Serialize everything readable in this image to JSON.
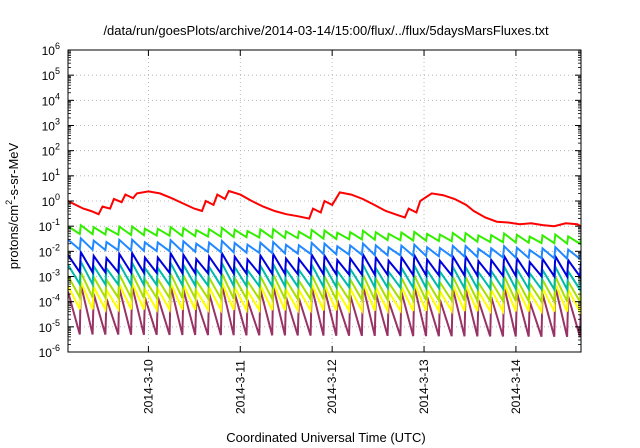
{
  "chart_data": {
    "type": "line",
    "title": "/data/run/goesPlots/archive/2014-03-14/15:00/flux/../flux/5daysMarsFluxes.txt",
    "xlabel": "Coordinated Universal Time (UTC)",
    "ylabel": "protons/cm2-s-sr-MeV",
    "yscale": "log",
    "ylim": [
      1e-06,
      1000000.0
    ],
    "xlim": [
      "2014-03-09 03:00",
      "2014-03-14 17:00"
    ],
    "grid": true,
    "x_ticks": [
      "2014-3-10",
      "2014-3-11",
      "2014-3-12",
      "2014-3-13",
      "2014-3-14"
    ],
    "y_ticks": [
      {
        "base": "10",
        "exp": "-6"
      },
      {
        "base": "10",
        "exp": "-5"
      },
      {
        "base": "10",
        "exp": "-4"
      },
      {
        "base": "10",
        "exp": "-3"
      },
      {
        "base": "10",
        "exp": "-2"
      },
      {
        "base": "10",
        "exp": "-1"
      },
      {
        "base": "10",
        "exp": "0"
      },
      {
        "base": "10",
        "exp": "1"
      },
      {
        "base": "10",
        "exp": "2"
      },
      {
        "base": "10",
        "exp": "3"
      },
      {
        "base": "10",
        "exp": "4"
      },
      {
        "base": "10",
        "exp": "5"
      },
      {
        "base": "10",
        "exp": "6"
      }
    ],
    "series": [
      {
        "color": "#ff0000",
        "x": [
          "2014-03-09 03:00",
          "2014-03-09 05:00",
          "2014-03-09 07:00",
          "2014-03-09 09:00",
          "2014-03-09 11:00",
          "2014-03-09 12:00",
          "2014-03-09 14:00",
          "2014-03-09 15:00",
          "2014-03-09 17:00",
          "2014-03-09 18:00",
          "2014-03-09 20:00",
          "2014-03-09 21:00",
          "2014-03-10 00:00",
          "2014-03-10 03:00",
          "2014-03-10 06:00",
          "2014-03-10 09:00",
          "2014-03-10 12:00",
          "2014-03-10 14:00",
          "2014-03-10 15:00",
          "2014-03-10 17:00",
          "2014-03-10 18:00",
          "2014-03-10 20:00",
          "2014-03-10 21:00",
          "2014-03-11 00:00",
          "2014-03-11 03:00",
          "2014-03-11 06:00",
          "2014-03-11 09:00",
          "2014-03-11 12:00",
          "2014-03-11 15:00",
          "2014-03-11 18:00",
          "2014-03-11 19:00",
          "2014-03-11 21:00",
          "2014-03-11 22:00",
          "2014-03-12 00:00",
          "2014-03-12 02:00",
          "2014-03-12 05:00",
          "2014-03-12 08:00",
          "2014-03-12 11:00",
          "2014-03-12 14:00",
          "2014-03-12 17:00",
          "2014-03-12 19:00",
          "2014-03-12 20:00",
          "2014-03-12 22:00",
          "2014-03-12 23:00",
          "2014-03-13 02:00",
          "2014-03-13 05:00",
          "2014-03-13 08:00",
          "2014-03-13 11:00",
          "2014-03-13 13:00",
          "2014-03-13 16:00",
          "2014-03-13 19:00",
          "2014-03-13 22:00",
          "2014-03-14 01:00",
          "2014-03-14 04:00",
          "2014-03-14 07:00",
          "2014-03-14 10:00",
          "2014-03-14 13:00",
          "2014-03-14 16:00",
          "2014-03-14 17:00"
        ],
        "values": [
          1.0,
          0.7,
          0.5,
          0.4,
          0.3,
          0.6,
          0.5,
          1.2,
          0.9,
          1.8,
          1.3,
          2.0,
          2.4,
          2.0,
          1.3,
          0.8,
          0.5,
          0.4,
          1.0,
          0.7,
          1.8,
          1.2,
          2.5,
          1.8,
          1.0,
          0.6,
          0.4,
          0.3,
          0.25,
          0.2,
          0.5,
          0.35,
          1.0,
          0.7,
          2.2,
          1.8,
          1.2,
          0.7,
          0.4,
          0.28,
          0.22,
          0.5,
          0.35,
          1.0,
          2.0,
          1.7,
          1.2,
          0.7,
          0.4,
          0.22,
          0.15,
          0.14,
          0.12,
          0.13,
          0.11,
          0.1,
          0.13,
          0.12,
          0.1
        ]
      },
      {
        "color": "#33ee00",
        "pattern": "sawtooth",
        "start_low": 0.05,
        "end_low": 0.02,
        "amplitude_decades": 0.35,
        "teeth": 40
      },
      {
        "color": "#2288ff",
        "pattern": "sawtooth",
        "start_low": 0.012,
        "end_low": 0.005,
        "amplitude_decades": 0.45,
        "teeth": 40
      },
      {
        "color": "#0000dd",
        "pattern": "sawtooth",
        "start_low": 0.0015,
        "end_low": 0.001,
        "amplitude_decades": 0.8,
        "teeth": 40
      },
      {
        "color": "#00bbaa",
        "pattern": "sawtooth",
        "start_low": 0.0005,
        "end_low": 0.0003,
        "amplitude_decades": 0.9,
        "teeth": 40
      },
      {
        "color": "#aadd00",
        "pattern": "sawtooth",
        "start_low": 0.00015,
        "end_low": 0.0001,
        "amplitude_decades": 1.0,
        "teeth": 40
      },
      {
        "color": "#ffff00",
        "pattern": "sawtooth",
        "start_low": 5e-05,
        "end_low": 4e-05,
        "amplitude_decades": 1.1,
        "teeth": 40
      },
      {
        "color": "#993366",
        "pattern": "sawtooth",
        "start_low": 5e-06,
        "end_low": 4e-06,
        "amplitude_decades": 2.0,
        "teeth": 40
      }
    ]
  }
}
